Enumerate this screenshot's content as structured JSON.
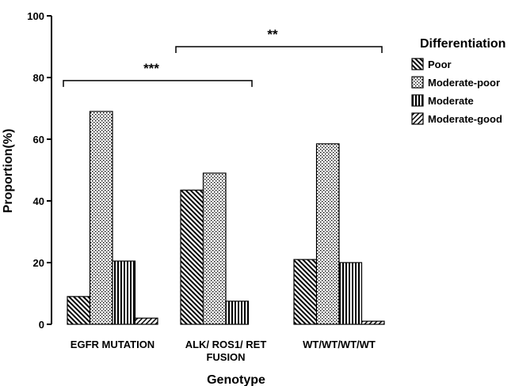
{
  "chart_data": {
    "type": "bar",
    "title": "",
    "xlabel": "Genotype",
    "ylabel": "Proportion(%)",
    "ylim": [
      0,
      100
    ],
    "yticks": [
      0,
      20,
      40,
      60,
      80,
      100
    ],
    "categories": [
      [
        "EGFR MUTATION"
      ],
      [
        "ALK/ ROS1/ RET",
        "FUSION"
      ],
      [
        "WT/WT/WT/WT"
      ]
    ],
    "legend": {
      "title": "Differentiation",
      "placement": "right"
    },
    "series": [
      {
        "name": "Poor",
        "pattern": "diagonal-backslash",
        "values": [
          9,
          43.5,
          21
        ]
      },
      {
        "name": "Moderate-poor",
        "pattern": "dots",
        "values": [
          69,
          49,
          58.5
        ]
      },
      {
        "name": "Moderate",
        "pattern": "vertical-lines",
        "values": [
          20.5,
          7.5,
          20
        ]
      },
      {
        "name": "Moderate-good",
        "pattern": "diagonal-slash",
        "values": [
          2,
          0,
          1
        ]
      }
    ],
    "annotations": [
      {
        "label": "***",
        "from_category": 0,
        "to_category": 1,
        "y": 79
      },
      {
        "label": "**",
        "from_category": 1,
        "to_category": 2,
        "y": 90
      }
    ],
    "grid": false,
    "colors": {
      "stroke": "#000000",
      "fill": "#ffffff"
    }
  }
}
